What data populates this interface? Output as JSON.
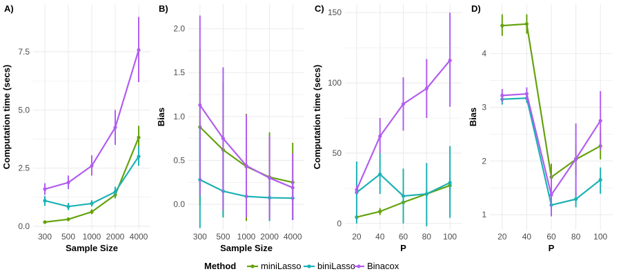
{
  "colors": {
    "miniLasso": "#64A20B",
    "biniLasso": "#1CB1B5",
    "Binacox": "#B15DF0",
    "grid": "#EBEBEB"
  },
  "legend": {
    "title": "Method",
    "items": [
      "miniLasso",
      "biniLasso",
      "Binacox"
    ]
  },
  "chart_data": [
    {
      "panel": "A)",
      "type": "line",
      "xlabel": "Sample Size",
      "ylabel": "Computation time (secs)",
      "categories": [
        "300",
        "500",
        "1000",
        "2000",
        "4000"
      ],
      "yticks": [
        0,
        2.5,
        5,
        7.5
      ],
      "ytick_labels": [
        "0.0",
        "2.5",
        "5.0",
        "7.5"
      ],
      "ylim": [
        -0.15,
        9.55
      ],
      "series": [
        {
          "name": "miniLasso",
          "values": [
            0.18,
            0.3,
            0.62,
            1.35,
            3.82
          ],
          "lo": [
            0.13,
            0.22,
            0.52,
            1.2,
            3.32
          ],
          "hi": [
            0.23,
            0.38,
            0.73,
            1.5,
            4.32
          ]
        },
        {
          "name": "biniLasso",
          "values": [
            1.1,
            0.85,
            0.98,
            1.48,
            3.0
          ],
          "lo": [
            0.88,
            0.7,
            0.85,
            1.28,
            2.6
          ],
          "hi": [
            1.3,
            1.0,
            1.12,
            1.7,
            3.45
          ]
        },
        {
          "name": "Binacox",
          "values": [
            1.6,
            1.88,
            2.6,
            4.25,
            7.58
          ],
          "lo": [
            1.35,
            1.6,
            2.18,
            3.5,
            6.2
          ],
          "hi": [
            1.85,
            2.18,
            3.05,
            5.0,
            9.0
          ]
        }
      ]
    },
    {
      "panel": "B)",
      "type": "line",
      "xlabel": "Sample Size",
      "ylabel": "Bias",
      "categories": [
        "300",
        "500",
        "1000",
        "2000",
        "4000"
      ],
      "yticks": [
        0,
        0.5,
        1,
        1.5,
        2
      ],
      "ytick_labels": [
        "0.0",
        "0.5",
        "1.0",
        "1.5",
        "2.0"
      ],
      "ylim": [
        -0.29,
        2.28
      ],
      "series": [
        {
          "name": "miniLasso",
          "values": [
            0.88,
            0.62,
            0.43,
            0.31,
            0.25
          ],
          "lo": [
            0.0,
            -0.15,
            -0.19,
            -0.19,
            -0.18
          ],
          "hi": [
            1.77,
            1.4,
            1.03,
            0.82,
            0.7
          ]
        },
        {
          "name": "biniLasso",
          "values": [
            0.28,
            0.15,
            0.09,
            0.075,
            0.07
          ],
          "lo": [
            -0.27,
            -0.15,
            -0.14,
            -0.19,
            -0.18
          ],
          "hi": [
            0.9,
            0.62,
            0.35,
            0.3,
            0.28
          ]
        },
        {
          "name": "Binacox",
          "values": [
            1.13,
            0.75,
            0.44,
            0.3,
            0.19
          ],
          "lo": [
            0.1,
            -0.07,
            -0.15,
            -0.17,
            -0.18
          ],
          "hi": [
            2.15,
            1.56,
            1.02,
            0.78,
            0.58
          ]
        }
      ]
    },
    {
      "panel": "C)",
      "type": "line",
      "xlabel": "P",
      "ylabel": "Computation time (secs)",
      "categories": [
        "20",
        "40",
        "60",
        "80",
        "100"
      ],
      "yticks": [
        0,
        50,
        100,
        150
      ],
      "ytick_labels": [
        "0",
        "50",
        "100",
        "150"
      ],
      "ylim": [
        -4.5,
        156
      ],
      "series": [
        {
          "name": "miniLasso",
          "values": [
            4.5,
            8.5,
            15.0,
            21.0,
            27.0
          ],
          "lo": [
            2.5,
            6.0,
            12.0,
            18.0,
            22.0
          ],
          "hi": [
            6.5,
            11.0,
            18.0,
            24.0,
            33.0
          ]
        },
        {
          "name": "biniLasso",
          "values": [
            22.0,
            35.0,
            19.5,
            21.0,
            29.0
          ],
          "lo": [
            0.0,
            21.0,
            0.0,
            -2.0,
            4.0
          ],
          "hi": [
            44.0,
            50.0,
            39.0,
            43.0,
            55.0
          ]
        },
        {
          "name": "Binacox",
          "values": [
            24.0,
            62.0,
            85.0,
            96.0,
            116.0
          ],
          "lo": [
            21.0,
            50.0,
            66.0,
            75.0,
            83.0
          ],
          "hi": [
            27.0,
            75.0,
            104.0,
            117.0,
            150.0
          ]
        }
      ]
    },
    {
      "panel": "D)",
      "type": "line",
      "xlabel": "P",
      "ylabel": "Bias",
      "categories": [
        "20",
        "40",
        "60",
        "80",
        "100"
      ],
      "yticks": [
        1,
        2,
        3,
        4
      ],
      "ytick_labels": [
        "1",
        "2",
        "3",
        "4"
      ],
      "ylim": [
        0.72,
        4.92
      ],
      "series": [
        {
          "name": "miniLasso",
          "values": [
            4.52,
            4.55,
            1.7,
            2.03,
            2.28
          ],
          "lo": [
            4.33,
            4.37,
            1.4,
            1.73,
            2.03
          ],
          "hi": [
            4.73,
            4.73,
            1.95,
            2.3,
            2.55
          ]
        },
        {
          "name": "biniLasso",
          "values": [
            3.15,
            3.17,
            1.18,
            1.29,
            1.65
          ],
          "lo": [
            3.05,
            3.08,
            1.05,
            1.14,
            1.39
          ],
          "hi": [
            3.26,
            3.28,
            1.3,
            1.43,
            1.88
          ]
        },
        {
          "name": "Binacox",
          "values": [
            3.22,
            3.25,
            1.37,
            2.04,
            2.75
          ],
          "lo": [
            3.1,
            3.13,
            0.97,
            1.35,
            2.2
          ],
          "hi": [
            3.34,
            3.37,
            1.77,
            2.7,
            3.3
          ]
        }
      ]
    }
  ]
}
